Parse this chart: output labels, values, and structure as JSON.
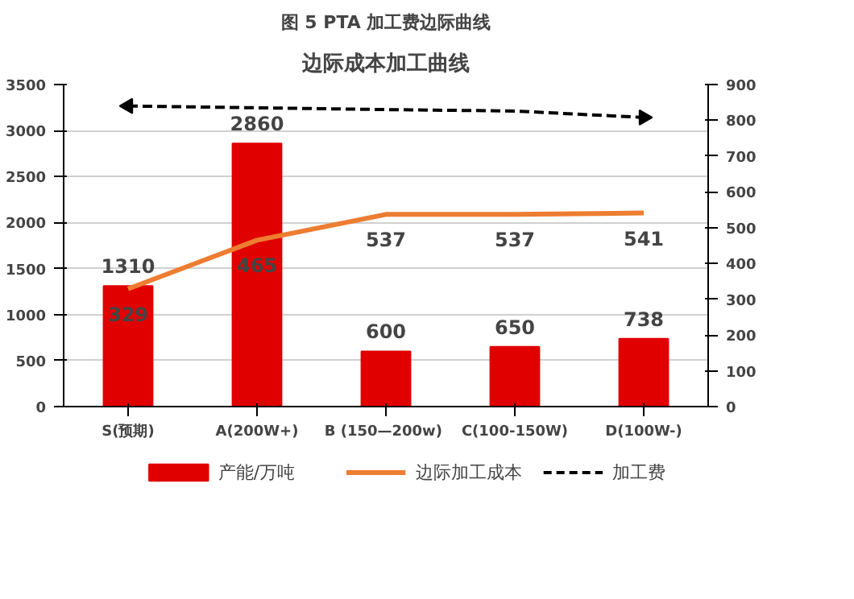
{
  "chart_data": {
    "type": "bar",
    "title": "图 5 PTA 加工费边际曲线",
    "subtitle": "边际成本加工曲线",
    "categories": [
      "S(预期)",
      "A(200W+)",
      "B  (150—200w)",
      "C(100-150W)",
      "D(100W-)"
    ],
    "series": [
      {
        "name": "产能/万吨",
        "color": "#e00000",
        "values": [
          1310,
          2860,
          600,
          650,
          738
        ],
        "value_labels": [
          "1310",
          "2860",
          "600",
          "650",
          "738"
        ]
      },
      {
        "name": "边际加工成本",
        "type": "line",
        "axis": "y2",
        "color": "#ed7d31",
        "line_style": "solid",
        "values": [
          329,
          465,
          537,
          537,
          541
        ],
        "value_labels": [
          "329",
          "465",
          "537",
          "537",
          "541"
        ]
      },
      {
        "name": "加工费",
        "type": "line",
        "axis": "y2",
        "color": "#000000",
        "line_style": "dashed",
        "values": [
          840,
          835,
          830,
          826,
          808
        ]
      }
    ],
    "ylim": [
      0,
      3500
    ],
    "yticks": [
      0,
      500,
      1000,
      1500,
      2000,
      2500,
      3000,
      3500
    ],
    "y2lim": [
      0,
      900
    ],
    "y2ticks": [
      0,
      100,
      200,
      300,
      400,
      500,
      600,
      700,
      800,
      900
    ],
    "grid": "y",
    "legend": "bottom"
  }
}
